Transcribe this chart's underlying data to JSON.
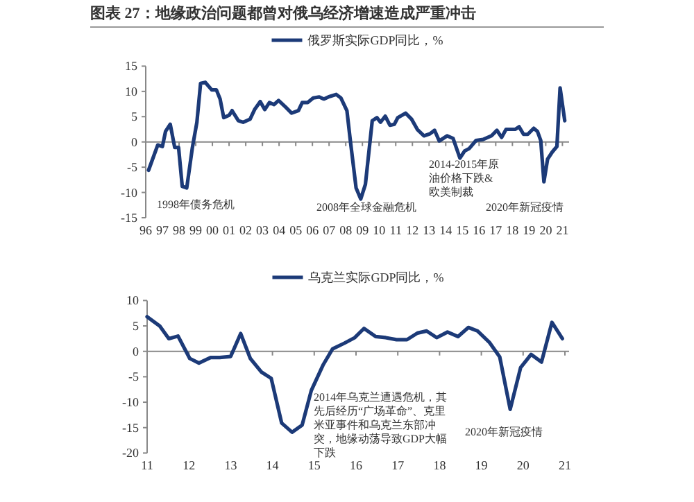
{
  "chart_data": [
    {
      "type": "line",
      "title": "图表 27：地缘政治问题都曾对俄乌经济增速造成严重冲击",
      "legend": "top",
      "x": [
        1996.17,
        1996.72,
        1997.0,
        1997.19,
        1997.47,
        1997.74,
        1997.97,
        1998.19,
        1998.46,
        1998.8,
        1999.07,
        1999.29,
        1999.57,
        1999.96,
        2000.24,
        2000.46,
        2000.68,
        2001.01,
        2001.18,
        2001.56,
        2001.84,
        2002.26,
        2002.53,
        2002.87,
        2003.14,
        2003.42,
        2003.7,
        2003.97,
        2004.39,
        2004.75,
        2005.16,
        2005.39,
        2005.72,
        2006.05,
        2006.41,
        2006.69,
        2006.96,
        2007.43,
        2007.71,
        2008.07,
        2008.26,
        2008.62,
        2008.9,
        2009.18,
        2009.59,
        2009.87,
        2010.09,
        2010.37,
        2010.65,
        2010.92,
        2011.12,
        2011.59,
        2011.95,
        2012.31,
        2012.69,
        2013.05,
        2013.33,
        2013.61,
        2014.08,
        2014.44,
        2014.85,
        2015.13,
        2015.41,
        2015.82,
        2016.24,
        2016.74,
        2017.07,
        2017.35,
        2017.62,
        2018.18,
        2018.4,
        2018.67,
        2018.92,
        2019.28,
        2019.5,
        2019.7,
        2019.89,
        2020.11,
        2020.39,
        2020.67,
        2020.86,
        2021.14
      ],
      "series": [
        {
          "name": "俄罗斯实际GDP同比，%",
          "color": "#1c3a78",
          "values": [
            -5.6,
            -0.6,
            -0.9,
            2.1,
            3.5,
            -1.1,
            -1.1,
            -8.8,
            -9.1,
            -1.1,
            3.9,
            11.6,
            11.8,
            10.3,
            10.3,
            8.5,
            4.8,
            5.3,
            6.2,
            4.2,
            3.9,
            4.5,
            6.4,
            8.0,
            6.4,
            7.8,
            7.4,
            8.2,
            6.9,
            5.7,
            6.2,
            7.8,
            7.8,
            8.7,
            8.9,
            8.5,
            8.9,
            9.4,
            8.7,
            6.2,
            0.7,
            -9.1,
            -11.3,
            -8.4,
            4.2,
            4.8,
            3.9,
            5.1,
            3.3,
            3.5,
            4.8,
            5.7,
            4.5,
            2.4,
            1.2,
            1.6,
            2.3,
            0.2,
            1.2,
            0.7,
            -3.2,
            -1.8,
            -1.3,
            0.3,
            0.5,
            1.2,
            2.3,
            0.9,
            2.5,
            2.5,
            3.0,
            1.5,
            1.5,
            2.7,
            2.1,
            0.3,
            -7.9,
            -3.4,
            -2.0,
            -0.9,
            10.7,
            4.2
          ]
        }
      ],
      "xlim": [
        1996,
        2021.4
      ],
      "xticks": [
        {
          "value": 1996,
          "label": "96"
        },
        {
          "value": 1997,
          "label": "97"
        },
        {
          "value": 1998,
          "label": "98"
        },
        {
          "value": 1999,
          "label": "99"
        },
        {
          "value": 2000,
          "label": "00"
        },
        {
          "value": 2001,
          "label": "01"
        },
        {
          "value": 2002,
          "label": "02"
        },
        {
          "value": 2003,
          "label": "03"
        },
        {
          "value": 2004,
          "label": "04"
        },
        {
          "value": 2005,
          "label": "05"
        },
        {
          "value": 2006,
          "label": "06"
        },
        {
          "value": 2007,
          "label": "07"
        },
        {
          "value": 2008,
          "label": "08"
        },
        {
          "value": 2009,
          "label": "09"
        },
        {
          "value": 2010,
          "label": "10"
        },
        {
          "value": 2011,
          "label": "11"
        },
        {
          "value": 2012,
          "label": "12"
        },
        {
          "value": 2013,
          "label": "13"
        },
        {
          "value": 2014,
          "label": "14"
        },
        {
          "value": 2015,
          "label": "15"
        },
        {
          "value": 2016,
          "label": "16"
        },
        {
          "value": 2017,
          "label": "17"
        },
        {
          "value": 2018,
          "label": "18"
        },
        {
          "value": 2019,
          "label": "19"
        },
        {
          "value": 2020,
          "label": "20"
        },
        {
          "value": 2021,
          "label": "21"
        }
      ],
      "ylim": [
        -15,
        15
      ],
      "yticks": [
        -15,
        -10,
        -5,
        0,
        5,
        10,
        15
      ],
      "annotations": [
        "1998年债务危机",
        "2008年全球金融危机",
        "2014-2015年原油价格下跌&欧美制裁",
        "2020年新冠疫情"
      ]
    },
    {
      "type": "line",
      "legend": "top",
      "x": [
        2011.0,
        2011.3,
        2011.52,
        2011.74,
        2012.02,
        2012.24,
        2012.52,
        2012.74,
        2013.0,
        2013.24,
        2013.47,
        2013.74,
        2013.97,
        2014.22,
        2014.47,
        2014.71,
        2014.93,
        2015.21,
        2015.44,
        2015.72,
        2015.97,
        2016.19,
        2016.47,
        2016.71,
        2016.97,
        2017.22,
        2017.47,
        2017.69,
        2017.93,
        2018.19,
        2018.44,
        2018.69,
        2018.91,
        2019.19,
        2019.44,
        2019.69,
        2019.94,
        2020.19,
        2020.44,
        2020.69,
        2020.94
      ],
      "series": [
        {
          "name": "乌克兰实际GDP同比，%",
          "color": "#1c3a78",
          "values": [
            6.8,
            5.0,
            2.5,
            3.0,
            -1.4,
            -2.3,
            -1.2,
            -1.2,
            -1.0,
            3.5,
            -1.4,
            -4.1,
            -5.3,
            -14.1,
            -15.9,
            -14.5,
            -7.7,
            -2.7,
            0.5,
            1.6,
            2.7,
            4.5,
            2.9,
            2.7,
            2.3,
            2.3,
            3.6,
            4.0,
            2.7,
            3.8,
            2.9,
            4.7,
            4.0,
            1.8,
            -1.1,
            -11.4,
            -3.2,
            -0.6,
            -2.1,
            5.7,
            2.5
          ]
        }
      ],
      "xlim": [
        2011,
        2021.1
      ],
      "xticks": [
        {
          "value": 2011,
          "label": "11"
        },
        {
          "value": 2012,
          "label": "12"
        },
        {
          "value": 2013,
          "label": "13"
        },
        {
          "value": 2014,
          "label": "14"
        },
        {
          "value": 2015,
          "label": "15"
        },
        {
          "value": 2016,
          "label": "16"
        },
        {
          "value": 2017,
          "label": "17"
        },
        {
          "value": 2018,
          "label": "18"
        },
        {
          "value": 2019,
          "label": "19"
        },
        {
          "value": 2020,
          "label": "20"
        },
        {
          "value": 2021,
          "label": "21"
        }
      ],
      "ylim": [
        -20,
        10
      ],
      "yticks": [
        -20,
        -15,
        -10,
        -5,
        0,
        5,
        10
      ],
      "annotations": [
        "2014年乌克兰遭遇危机，其先后经历“广场革命”、克里米亚事件和乌克兰东部冲突，地缘动荡导致GDP大幅下跌",
        "2020年新冠疫情"
      ]
    }
  ]
}
